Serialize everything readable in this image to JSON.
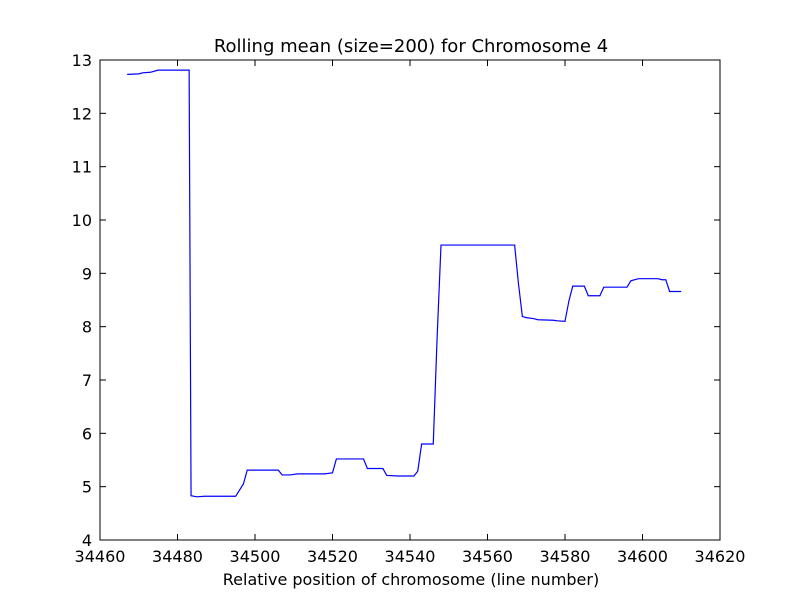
{
  "chart_data": {
    "type": "line",
    "title": "Rolling mean (size=200) for Chromosome 4",
    "xlabel": "Relative position of chromosome (line number)",
    "ylabel": "",
    "xlim": [
      34460,
      34620
    ],
    "ylim": [
      4,
      13
    ],
    "xticks": [
      34460,
      34480,
      34500,
      34520,
      34540,
      34560,
      34580,
      34600,
      34620
    ],
    "yticks": [
      4,
      5,
      6,
      7,
      8,
      9,
      10,
      11,
      12,
      13
    ],
    "grid": false,
    "legend": "none",
    "series": [
      {
        "color": "#0000ff",
        "x": [
          34467,
          34470,
          34471,
          34473,
          34475,
          34483,
          34483.5,
          34485,
          34487,
          34495,
          34497,
          34498,
          34506,
          34507,
          34509,
          34511,
          34518,
          34520,
          34521,
          34521.5,
          34528,
          34529,
          34533,
          34534,
          34537,
          34541,
          34542,
          34543,
          34546,
          34547,
          34548,
          34567,
          34568,
          34569,
          34570,
          34572,
          34573,
          34577,
          34578,
          34580,
          34581,
          34582,
          34585,
          34586,
          34589,
          34590,
          34596,
          34597,
          34599,
          34604,
          34605,
          34606,
          34607,
          34610
        ],
        "y": [
          12.73,
          12.74,
          12.76,
          12.77,
          12.81,
          12.81,
          4.83,
          4.81,
          4.82,
          4.82,
          5.05,
          5.31,
          5.31,
          5.22,
          5.22,
          5.24,
          5.24,
          5.26,
          5.52,
          5.52,
          5.52,
          5.34,
          5.34,
          5.21,
          5.2,
          5.2,
          5.29,
          5.8,
          5.8,
          7.8,
          9.53,
          9.53,
          8.8,
          8.19,
          8.17,
          8.15,
          8.13,
          8.12,
          8.11,
          8.1,
          8.48,
          8.76,
          8.76,
          8.58,
          8.58,
          8.74,
          8.74,
          8.86,
          8.9,
          8.9,
          8.88,
          8.88,
          8.66,
          8.66
        ]
      }
    ]
  }
}
